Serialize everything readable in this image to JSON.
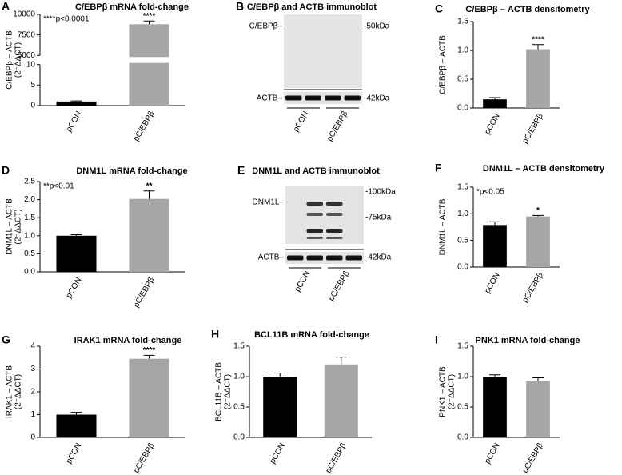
{
  "chart_data": [
    {
      "type": "bar",
      "panel": "A",
      "title": "C/EBPβ mRNA fold-change",
      "ylabel": "C/EBPβ – ACTB",
      "ylabel_sub": "(2⁻ΔΔCT)",
      "annotation": "****p<0.0001",
      "categories": [
        "pCON",
        "pC/EBPβ"
      ],
      "values": [
        1,
        8800
      ],
      "errors": [
        0.15,
        400
      ],
      "significance": [
        null,
        "****"
      ],
      "colors": [
        "#000000",
        "#a6a6a6"
      ],
      "ylim": [
        0,
        10000
      ],
      "yticks": [
        0,
        5,
        10,
        5000,
        7500,
        10000
      ]
    },
    {
      "type": "bar",
      "panel": "C",
      "title": "C/EBPβ – ACTB densitometry",
      "ylabel": "C/EBPβ – ACTB",
      "categories": [
        "pCON",
        "pC/EBPβ"
      ],
      "values": [
        0.15,
        1.02
      ],
      "errors": [
        0.03,
        0.08
      ],
      "significance": [
        null,
        "****"
      ],
      "colors": [
        "#000000",
        "#a6a6a6"
      ],
      "ylim": [
        0,
        1.5
      ],
      "yticks": [
        {
          "value": 0,
          "label": "0.0"
        },
        0.5,
        {
          "value": 1,
          "label": "1.0"
        },
        1.5
      ]
    },
    {
      "type": "bar",
      "panel": "D",
      "title": "DNM1L mRNA fold-change",
      "ylabel": "DNM1L – ACTB",
      "ylabel_sub": "(2⁻ΔΔCT)",
      "annotation": "**p<0.01",
      "categories": [
        "pCON",
        "pC/EBPβ"
      ],
      "values": [
        1.0,
        2.02
      ],
      "errors": [
        0.03,
        0.22
      ],
      "significance": [
        null,
        "**"
      ],
      "colors": [
        "#000000",
        "#a6a6a6"
      ],
      "ylim": [
        0,
        2.5
      ],
      "yticks": [
        {
          "value": 0,
          "label": "0.0"
        },
        0.5,
        {
          "value": 1,
          "label": "1.0"
        },
        1.5,
        {
          "value": 2,
          "label": "2.0"
        },
        2.5
      ]
    },
    {
      "type": "bar",
      "panel": "F",
      "title": "DNM1L – ACTB densitometry",
      "ylabel": "DNM1L – ACTB",
      "annotation": "*p<0.05",
      "categories": [
        "pCON",
        "pC/EBPβ"
      ],
      "values": [
        0.79,
        0.95
      ],
      "errors": [
        0.06,
        0.02
      ],
      "significance": [
        null,
        "*"
      ],
      "colors": [
        "#000000",
        "#a6a6a6"
      ],
      "ylim": [
        0,
        1.5
      ],
      "yticks": [
        {
          "value": 0,
          "label": "0.0"
        },
        0.5,
        {
          "value": 1,
          "label": "1.0"
        },
        1.5
      ]
    },
    {
      "type": "bar",
      "panel": "G",
      "title": "IRAK1 mRNA fold-change",
      "ylabel": "IRAK1 – ACTB",
      "ylabel_sub": "(2⁻ΔΔCT)",
      "categories": [
        "pCON",
        "pC/EBPβ"
      ],
      "values": [
        1.0,
        3.45
      ],
      "errors": [
        0.1,
        0.15
      ],
      "significance": [
        null,
        "****"
      ],
      "colors": [
        "#000000",
        "#a6a6a6"
      ],
      "ylim": [
        0,
        4
      ],
      "yticks": [
        0,
        1,
        2,
        3,
        4
      ]
    },
    {
      "type": "bar",
      "panel": "H",
      "title": "BCL11B mRNA fold-change",
      "ylabel": "BCL11B – ACTB",
      "ylabel_sub": "(2⁻ΔΔCT)",
      "categories": [
        "pCON",
        "pC/EBPβ"
      ],
      "values": [
        1.0,
        1.2
      ],
      "errors": [
        0.06,
        0.12
      ],
      "colors": [
        "#000000",
        "#a6a6a6"
      ],
      "ylim": [
        0,
        1.5
      ],
      "yticks": [
        {
          "value": 0,
          "label": "0.0"
        },
        0.5,
        {
          "value": 1,
          "label": "1.0"
        },
        1.5
      ]
    },
    {
      "type": "bar",
      "panel": "I",
      "title": "PNK1 mRNA fold-change",
      "ylabel": "PNK1 – ACTB",
      "ylabel_sub": "(2⁻ΔΔCT)",
      "categories": [
        "pCON",
        "pC/EBPβ"
      ],
      "values": [
        1.0,
        0.93
      ],
      "errors": [
        0.03,
        0.05
      ],
      "colors": [
        "#000000",
        "#a6a6a6"
      ],
      "ylim": [
        0,
        1.5
      ],
      "yticks": [
        {
          "value": 0,
          "label": "0.0"
        },
        0.5,
        {
          "value": 1,
          "label": "1.0"
        },
        1.5
      ]
    }
  ],
  "blots": [
    {
      "panel": "B",
      "title": "C/EBPβ and ACTB immunoblot",
      "left_labels": [
        "C/EBPβ–",
        "ACTB–"
      ],
      "right_labels": [
        "-50kDa",
        "-42kDa"
      ],
      "lanes": [
        "pCON",
        "pC/EBPβ"
      ]
    },
    {
      "panel": "E",
      "title": "DNM1L and ACTB immunoblot",
      "left_labels": [
        "DNM1L–",
        "ACTB–"
      ],
      "right_labels": [
        "-100kDa",
        "-75kDa",
        "-42kDa"
      ],
      "lanes": [
        "pCON",
        "pC/EBPβ"
      ]
    }
  ]
}
